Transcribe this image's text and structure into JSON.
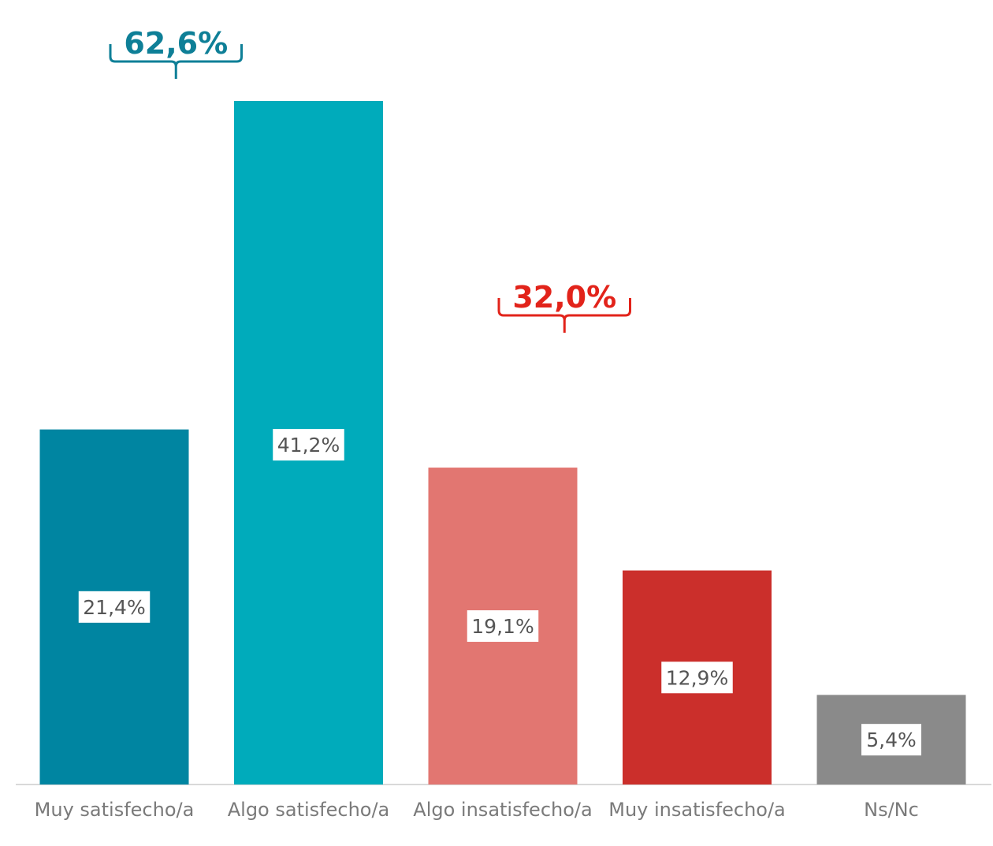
{
  "chart_data": {
    "type": "bar",
    "categories": [
      "Muy satisfecho/a",
      "Algo satisfecho/a",
      "Algo insatisfecho/a",
      "Muy insatisfecho/a",
      "Ns/Nc"
    ],
    "values": [
      21.4,
      41.2,
      19.1,
      12.9,
      5.4
    ],
    "value_labels": [
      "21,4%",
      "41,2%",
      "19,1%",
      "12,9%",
      "5,4%"
    ],
    "colors": [
      "#0085a1",
      "#00abbb",
      "#e27671",
      "#cb2f2b",
      "#8a8a8a"
    ],
    "ylim": [
      0,
      45
    ],
    "grid": false,
    "legend": "none",
    "groups": [
      {
        "label": "62,6%",
        "color": "#0e7f97",
        "from": 0,
        "to": 1
      },
      {
        "label": "32,0%",
        "color": "#e2231a",
        "from": 2,
        "to": 3
      }
    ]
  }
}
